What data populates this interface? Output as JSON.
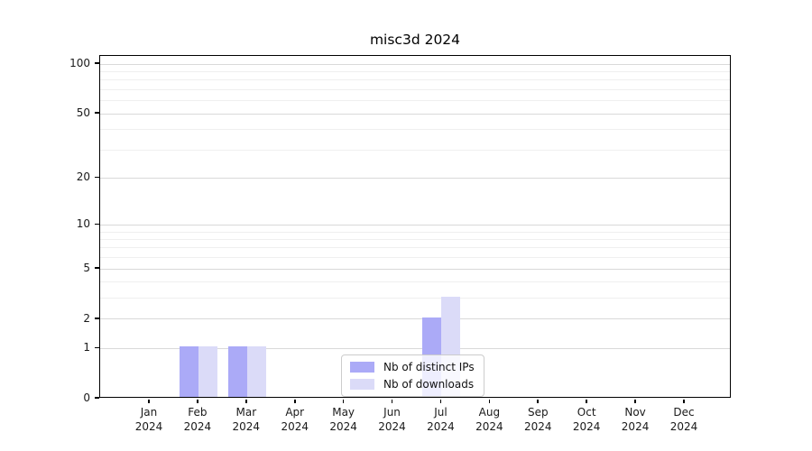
{
  "chart_data": {
    "type": "bar",
    "title": "misc3d 2024",
    "categories": [
      "Jan",
      "Feb",
      "Mar",
      "Apr",
      "May",
      "Jun",
      "Jul",
      "Aug",
      "Sep",
      "Oct",
      "Nov",
      "Dec"
    ],
    "x_year": "2024",
    "series": [
      {
        "name": "Nb of distinct IPs",
        "color": "#abaaf7",
        "values": [
          0,
          1,
          1,
          0,
          0,
          0,
          2,
          0,
          0,
          0,
          0,
          0
        ]
      },
      {
        "name": "Nb of downloads",
        "color": "#dbdbf8",
        "values": [
          0,
          1,
          1,
          0,
          0,
          0,
          3,
          0,
          0,
          0,
          0,
          0
        ]
      }
    ],
    "y_scale": "log10(1+y)",
    "yticks": [
      0,
      1,
      2,
      5,
      10,
      20,
      50,
      100
    ],
    "minor_gridlines": [
      3,
      4,
      6,
      7,
      8,
      9,
      30,
      40,
      60,
      70,
      80,
      90
    ],
    "ylim": [
      0,
      112
    ],
    "grid": true,
    "legend_position": "bottom-center"
  },
  "colors": {
    "grid_major": "#d9d9d9",
    "grid_minor": "#efefef",
    "axis": "#000000",
    "text": "#1a1a1a",
    "background": "#ffffff"
  }
}
